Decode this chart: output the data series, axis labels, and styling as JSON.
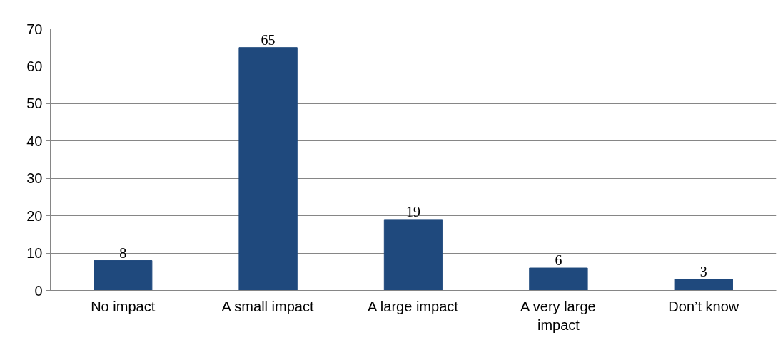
{
  "chart_data": {
    "type": "bar",
    "categories": [
      "No impact",
      "A small impact",
      "A large impact",
      "A very large impact",
      "Don’t know"
    ],
    "values": [
      8,
      65,
      19,
      6,
      3
    ],
    "color": "#1f497d",
    "ylim": [
      0,
      70
    ],
    "yticks": [
      0,
      10,
      20,
      30,
      40,
      50,
      60,
      70
    ],
    "grid": "y",
    "data_labels": true
  }
}
